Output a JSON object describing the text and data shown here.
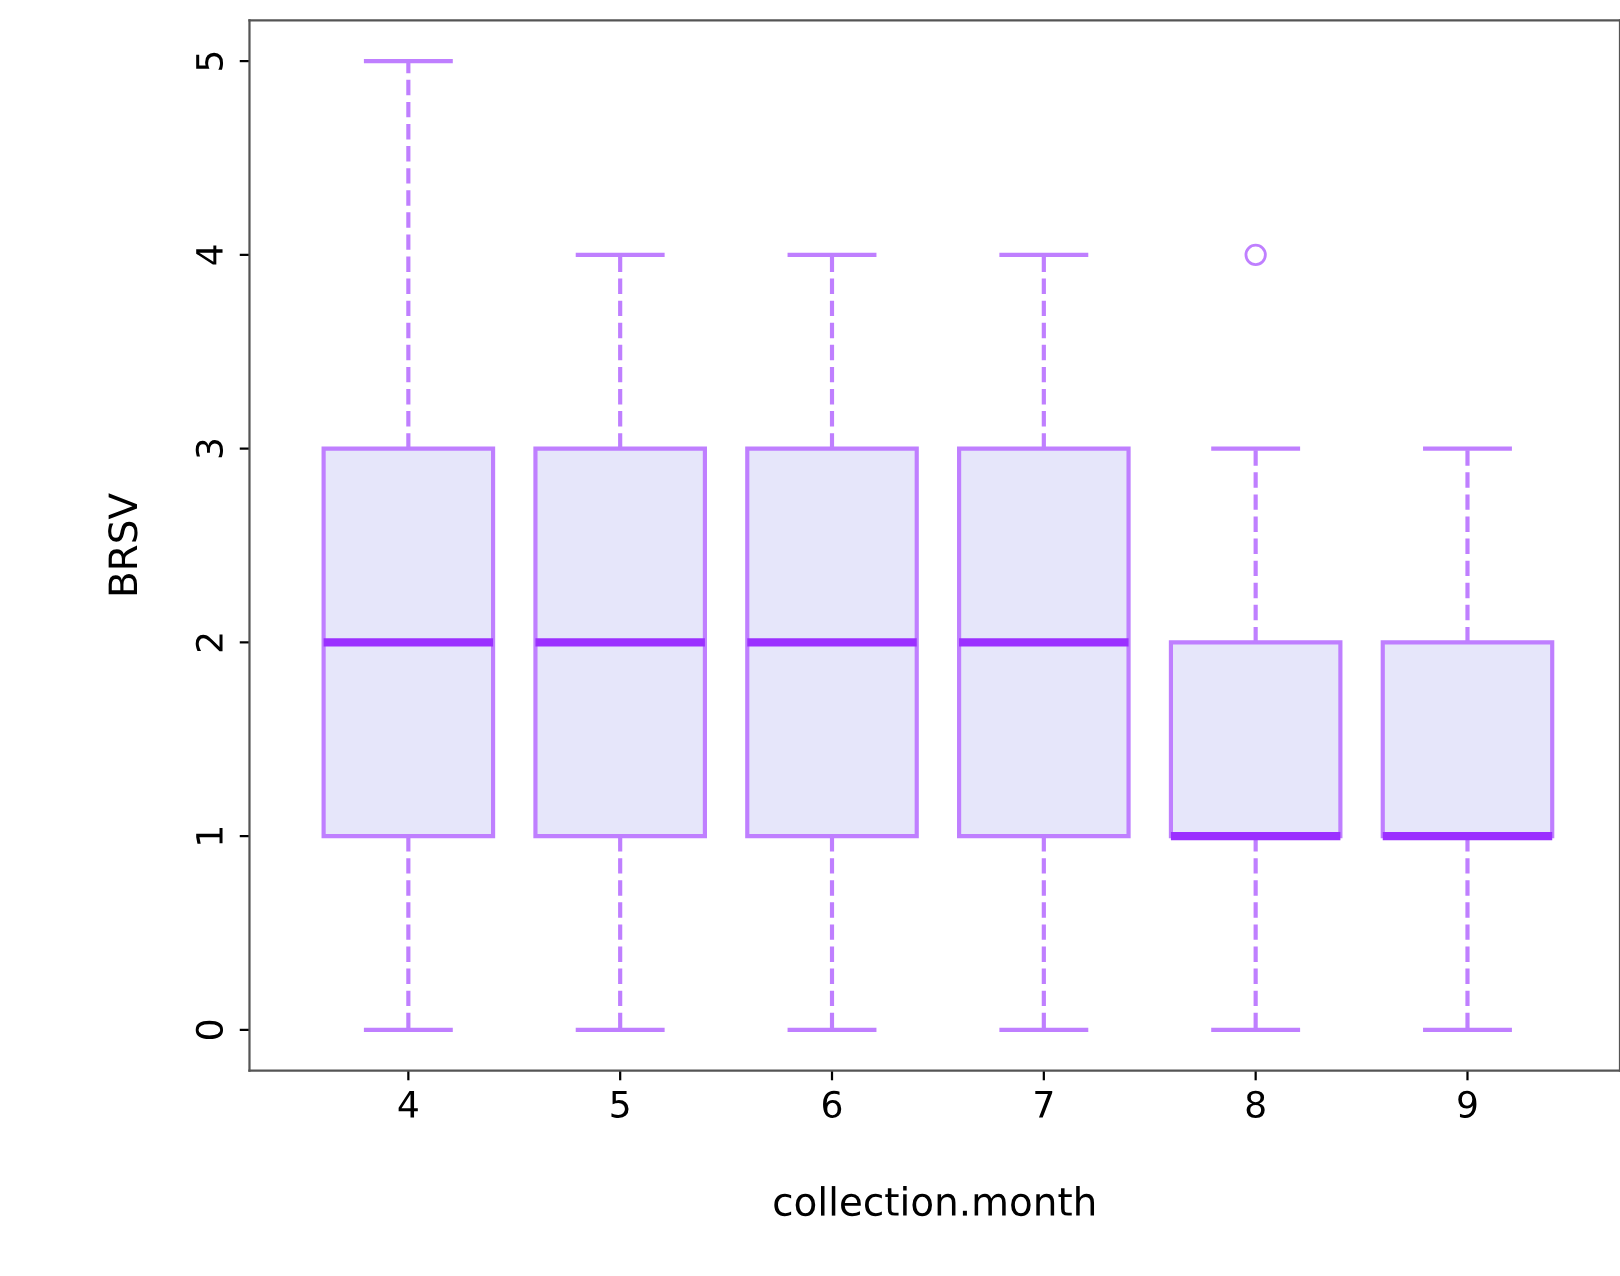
{
  "chart_data": {
    "type": "box",
    "xlabel": "collection.month",
    "ylabel": "BRSV",
    "categories": [
      "4",
      "5",
      "6",
      "7",
      "8",
      "9"
    ],
    "boxes": [
      {
        "low": 0,
        "q1": 1,
        "median": 2,
        "q3": 3,
        "high": 5
      },
      {
        "low": 0,
        "q1": 1,
        "median": 2,
        "q3": 3,
        "high": 4
      },
      {
        "low": 0,
        "q1": 1,
        "median": 2,
        "q3": 3,
        "high": 4
      },
      {
        "low": 0,
        "q1": 1,
        "median": 2,
        "q3": 3,
        "high": 4
      },
      {
        "low": 0,
        "q1": 1,
        "median": 1,
        "q3": 2,
        "high": 3,
        "outliers": [
          4
        ]
      },
      {
        "low": 0,
        "q1": 1,
        "median": 1,
        "q3": 2,
        "high": 3
      }
    ],
    "color": "#bf7fff",
    "ylim": [
      -0.21,
      5.21
    ],
    "yticks": [
      0,
      1,
      2,
      3,
      4,
      5
    ],
    "grid": false,
    "line_style": "dashed",
    "marker": "circle"
  }
}
